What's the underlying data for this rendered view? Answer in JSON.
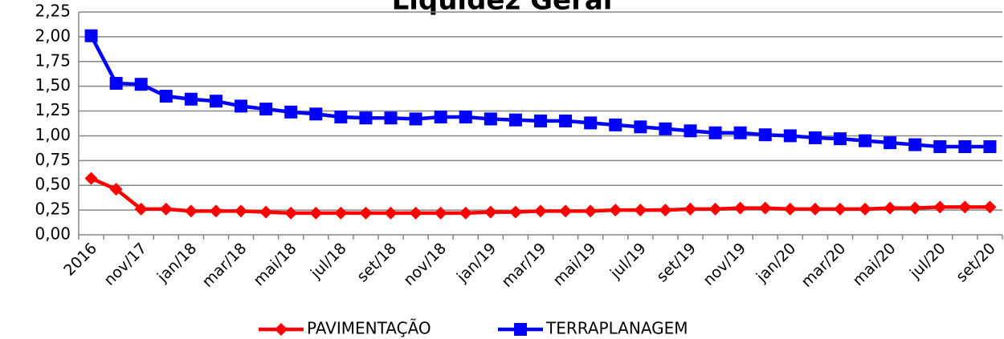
{
  "chart_data": {
    "type": "line",
    "title": "Liquidez Geral",
    "categories": [
      "2016",
      null,
      "nov/17",
      null,
      "jan/18",
      null,
      "mar/18",
      null,
      "mai/18",
      null,
      "jul/18",
      null,
      "set/18",
      null,
      "nov/18",
      null,
      "jan/19",
      null,
      "mar/19",
      null,
      "mai/19",
      null,
      "jul/19",
      null,
      "set/19",
      null,
      "nov/19",
      null,
      "jan/20",
      null,
      "mar/20",
      null,
      "mai/20",
      null,
      "jul/20",
      null,
      "set/20"
    ],
    "series": [
      {
        "name": "PAVIMENTAÇÃO",
        "color": "#ff0000",
        "marker": "diamond",
        "values": [
          0.57,
          0.46,
          0.26,
          0.26,
          0.24,
          0.24,
          0.24,
          0.23,
          0.22,
          0.22,
          0.22,
          0.22,
          0.22,
          0.22,
          0.22,
          0.22,
          0.23,
          0.23,
          0.24,
          0.24,
          0.24,
          0.25,
          0.25,
          0.25,
          0.26,
          0.26,
          0.27,
          0.27,
          0.26,
          0.26,
          0.26,
          0.26,
          0.27,
          0.27,
          0.28,
          0.28,
          0.28
        ]
      },
      {
        "name": "TERRAPLANAGEM",
        "color": "#0000ff",
        "marker": "square",
        "values": [
          2.01,
          1.53,
          1.52,
          1.4,
          1.37,
          1.35,
          1.3,
          1.27,
          1.24,
          1.22,
          1.19,
          1.18,
          1.18,
          1.17,
          1.19,
          1.19,
          1.17,
          1.16,
          1.15,
          1.15,
          1.13,
          1.11,
          1.09,
          1.07,
          1.05,
          1.03,
          1.03,
          1.01,
          1.0,
          0.98,
          0.97,
          0.95,
          0.93,
          0.91,
          0.89,
          0.89,
          0.89
        ]
      }
    ],
    "ylim": [
      0,
      2.25
    ],
    "yticks": [
      {
        "value": 0,
        "label": "0,00"
      },
      {
        "value": 0.25,
        "label": "0,25"
      },
      {
        "value": 0.5,
        "label": "0,50"
      },
      {
        "value": 0.75,
        "label": "0,75"
      },
      {
        "value": 1,
        "label": "1,00"
      },
      {
        "value": 1.25,
        "label": "1,25"
      },
      {
        "value": 1.5,
        "label": "1,50"
      },
      {
        "value": 1.75,
        "label": "1,75"
      },
      {
        "value": 2,
        "label": "2,00"
      },
      {
        "value": 2.25,
        "label": "2,25"
      }
    ],
    "grid": true,
    "legend": "bottom"
  }
}
